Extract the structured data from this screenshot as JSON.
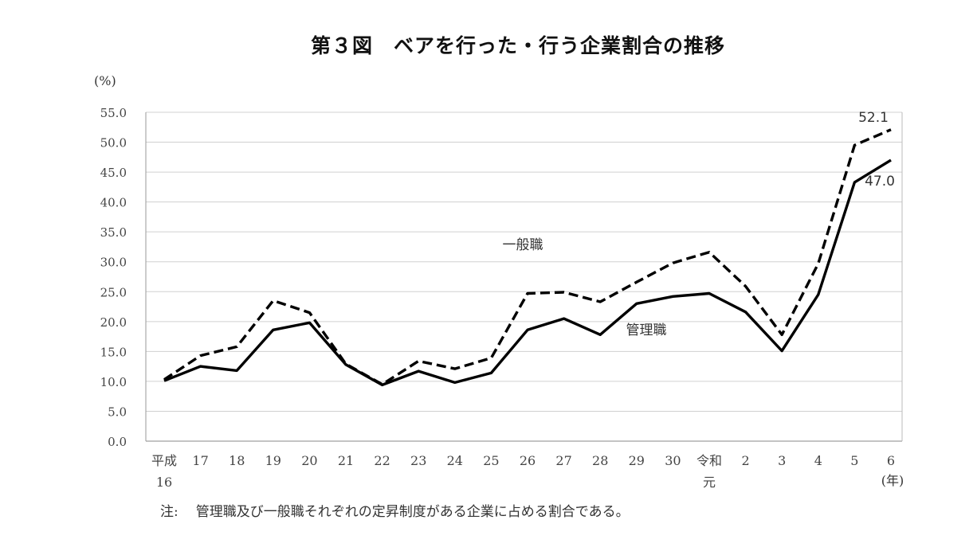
{
  "note_prefix": "注:",
  "note_text": "管理職及び一般職それぞれの定昇制度がある企業に占める割合である。",
  "chart_data": {
    "type": "line",
    "title": "第３図　ベアを行った・行う企業割合の推移",
    "ylabel": "(%)",
    "xlabel": "(年)",
    "ylim": [
      0,
      55
    ],
    "yticks": [
      "0.0",
      "5.0",
      "10.0",
      "15.0",
      "20.0",
      "25.0",
      "30.0",
      "35.0",
      "40.0",
      "45.0",
      "50.0",
      "55.0"
    ],
    "grid": true,
    "categories": [
      "平成16",
      "17",
      "18",
      "19",
      "20",
      "21",
      "22",
      "23",
      "24",
      "25",
      "26",
      "27",
      "28",
      "29",
      "30",
      "令和元",
      "2",
      "3",
      "4",
      "5",
      "6"
    ],
    "category_labels": [
      [
        "平成",
        "16"
      ],
      [
        "17"
      ],
      [
        "18"
      ],
      [
        "19"
      ],
      [
        "20"
      ],
      [
        "21"
      ],
      [
        "22"
      ],
      [
        "23"
      ],
      [
        "24"
      ],
      [
        "25"
      ],
      [
        "26"
      ],
      [
        "27"
      ],
      [
        "28"
      ],
      [
        "29"
      ],
      [
        "30"
      ],
      [
        "令和",
        "元"
      ],
      [
        "2"
      ],
      [
        "3"
      ],
      [
        "4"
      ],
      [
        "5"
      ],
      [
        "6"
      ]
    ],
    "series": [
      {
        "name": "一般職",
        "style": "dashed",
        "color": "#000000",
        "values": [
          10.3,
          14.3,
          15.8,
          23.5,
          21.5,
          12.9,
          9.5,
          13.4,
          12.1,
          13.9,
          24.7,
          24.9,
          23.3,
          26.6,
          29.8,
          31.6,
          25.9,
          17.8,
          29.7,
          49.5,
          52.1
        ],
        "end_label": "52.1"
      },
      {
        "name": "管理職",
        "style": "solid",
        "color": "#000000",
        "values": [
          10.1,
          12.5,
          11.8,
          18.6,
          19.8,
          12.8,
          9.4,
          11.7,
          9.8,
          11.4,
          18.6,
          20.5,
          17.8,
          23.0,
          24.2,
          24.7,
          21.6,
          15.1,
          24.5,
          43.3,
          47.0
        ],
        "end_label": "47.0"
      }
    ]
  }
}
